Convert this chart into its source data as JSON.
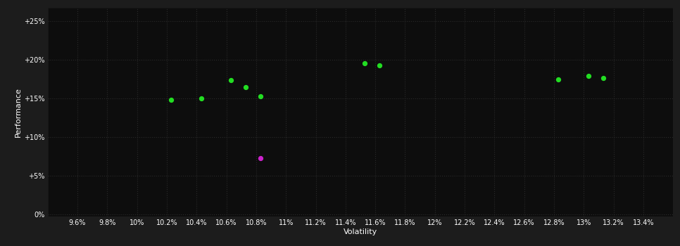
{
  "background_color": "#1c1c1c",
  "plot_bg_color": "#0d0d0d",
  "grid_color": "#2a2a2a",
  "text_color": "#ffffff",
  "green_color": "#22dd22",
  "magenta_color": "#cc22cc",
  "xlabel": "Volatility",
  "ylabel": "Performance",
  "xlim": [
    0.094,
    0.136
  ],
  "ylim": [
    -0.003,
    0.268
  ],
  "xticks": [
    0.096,
    0.098,
    0.1,
    0.102,
    0.104,
    0.106,
    0.108,
    0.11,
    0.112,
    0.114,
    0.116,
    0.118,
    0.12,
    0.122,
    0.124,
    0.126,
    0.128,
    0.13,
    0.132,
    0.134
  ],
  "yticks": [
    0.0,
    0.05,
    0.1,
    0.15,
    0.2,
    0.25
  ],
  "xtick_labels": [
    "9.6%",
    "9.8%",
    "10%",
    "10.2%",
    "10.4%",
    "10.6%",
    "10.8%",
    "11%",
    "11.2%",
    "11.4%",
    "11.6%",
    "11.8%",
    "12%",
    "12.2%",
    "12.4%",
    "12.6%",
    "12.8%",
    "13%",
    "13.2%",
    "13.4%"
  ],
  "ytick_labels": [
    "0%",
    "+5%",
    "+10%",
    "+15%",
    "+20%",
    "+25%"
  ],
  "green_points": [
    [
      0.1023,
      0.148
    ],
    [
      0.1043,
      0.15
    ],
    [
      0.1063,
      0.174
    ],
    [
      0.1073,
      0.165
    ],
    [
      0.1083,
      0.153
    ],
    [
      0.1153,
      0.196
    ],
    [
      0.1163,
      0.193
    ],
    [
      0.1283,
      0.175
    ],
    [
      0.1303,
      0.179
    ],
    [
      0.1313,
      0.176
    ]
  ],
  "magenta_points": [
    [
      0.1083,
      0.073
    ]
  ],
  "marker_size": 18,
  "figsize": [
    9.66,
    3.5
  ],
  "dpi": 100
}
